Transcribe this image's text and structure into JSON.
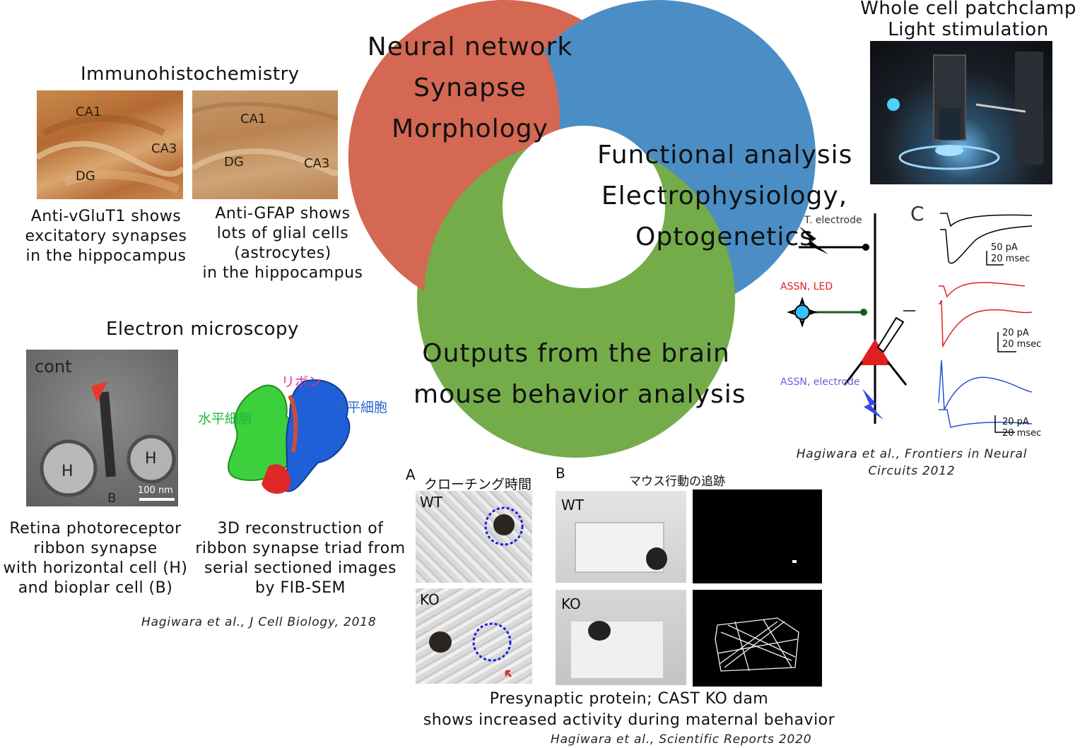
{
  "venn": {
    "red_lines": [
      "Neural network",
      "Synapse",
      "Morphology"
    ],
    "blue_lines": [
      "Functional analysis",
      "Electrophysiology,",
      "Optogenetics"
    ],
    "green_lines": [
      "Outputs from the brain",
      "mouse behavior analysis"
    ],
    "colors": {
      "red": "#d46852",
      "blue": "#4a8ec5",
      "green": "#74ac4a"
    }
  },
  "ihc": {
    "title": "Immunohistochemistry",
    "left_labels": [
      "CA1",
      "CA3",
      "DG"
    ],
    "right_labels": [
      "CA1",
      "DG",
      "CA3"
    ],
    "left_caption": [
      "Anti-vGluT1 shows",
      "excitatory synapses",
      "in the hippocampus"
    ],
    "right_caption": [
      "Anti-GFAP shows",
      "lots of glial cells",
      "(astrocytes)",
      "in the hippocampus"
    ]
  },
  "em": {
    "title": "Electron microscopy",
    "micrograph_labels": {
      "cont": "cont",
      "h_left": "H",
      "h_right": "H",
      "b": "B",
      "scale": "100 nm"
    },
    "recon_labels": {
      "ribbon": "リボン",
      "horiz_left": "水平細胞",
      "horiz_right": "水平細胞"
    },
    "left_caption": [
      "Retina photoreceptor",
      "ribbon synapse",
      "with horizontal cell (H)",
      "and bioplar cell (B)"
    ],
    "right_caption": [
      "3D reconstruction of",
      "ribbon synapse triad from",
      "serial sectioned images",
      "by FIB-SEM"
    ],
    "citation": "Hagiwara et al., J Cell Biology, 2018"
  },
  "patch": {
    "title_lines": [
      "Whole cell patchclamp",
      "Light stimulation"
    ]
  },
  "ephys": {
    "panel_letter": "C",
    "labels": {
      "top": "T. electrode",
      "led": "ASSN, LED",
      "electrode": "ASSN, electrode"
    },
    "scales": [
      [
        "50 pA",
        "20 msec"
      ],
      [
        "20 pA",
        "20 msec"
      ],
      [
        "20 pA",
        "20 msec"
      ]
    ],
    "citation_lines": [
      "Hagiwara et al., Frontiers in Neural",
      "Circuits 2012"
    ]
  },
  "behavior": {
    "panel_a": "A",
    "panel_a_title": "クローチング時間",
    "panel_b": "B",
    "panel_b_title": "マウス行動の追跡",
    "wt": "WT",
    "ko": "KO",
    "caption_lines": [
      "Presynaptic protein; CAST KO dam",
      "shows increased activity during maternal behavior"
    ],
    "citation": "Hagiwara et al., Scientific Reports 2020"
  }
}
